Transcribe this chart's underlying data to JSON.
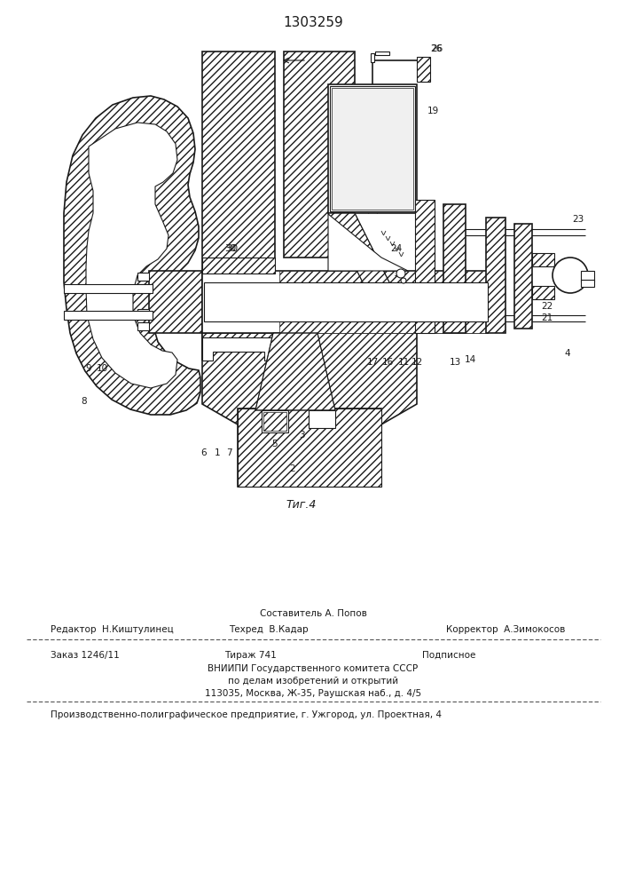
{
  "patent_number": "1303259",
  "figure_caption": "Τиг.4",
  "bg_color": "#ffffff",
  "line_color": "#1a1a1a",
  "footer": {
    "sestavitel": "Составитель А. Попов",
    "redaktor": "Редактор  Н.Киштулинец",
    "tehred": "Техред  В.Кадар",
    "korrektor": "Корректор  А.Зимокосов",
    "zakaz": "Заказ 1246/11",
    "tirazh": "Тираж 741",
    "podpisnoe": "Подписное",
    "vniip1": "ВНИИПИ Государственного комитета СССР",
    "vniip2": "по делам изобретений и открытий",
    "vniip3": "113035, Москва, Ж-35, Раушская наб., д. 4/5",
    "tipografiya": "Производственно-полиграфическое предприятие, г. Ужгород, ул. Проектная, 4"
  }
}
